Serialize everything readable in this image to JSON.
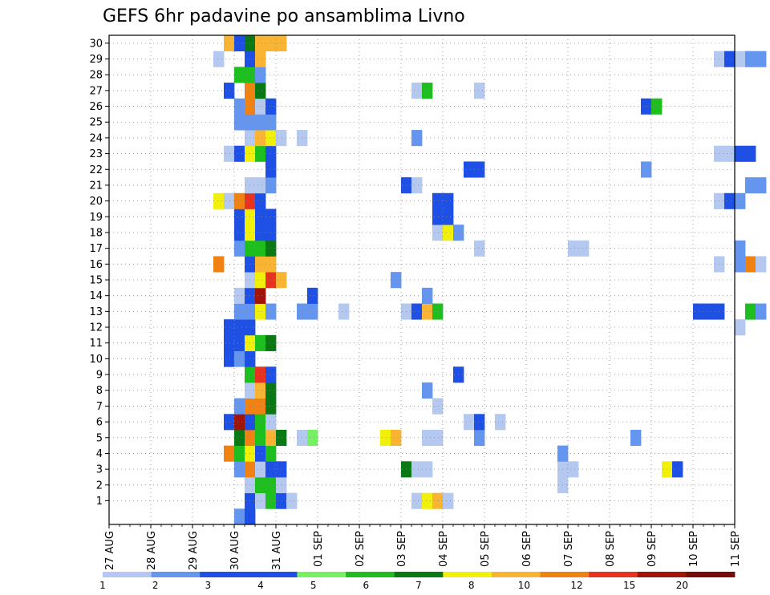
{
  "chart_data": {
    "type": "heatmap",
    "title": "GEFS 6hr padavine po ansamblima Livno",
    "x_start": "27 AUG 00Z",
    "x_step": "6h",
    "x_ticks": [
      "27 AUG",
      "28 AUG",
      "29 AUG",
      "30 AUG",
      "31 AUG",
      "01 SEP",
      "02 SEP",
      "03 SEP",
      "04 SEP",
      "05 SEP",
      "06 SEP",
      "07 SEP",
      "08 SEP",
      "09 SEP",
      "10 SEP",
      "11 SEP"
    ],
    "y_ticks": [
      "1",
      "2",
      "3",
      "4",
      "5",
      "6",
      "7",
      "8",
      "9",
      "10",
      "11",
      "12",
      "13",
      "14",
      "15",
      "16",
      "17",
      "18",
      "19",
      "20",
      "21",
      "22",
      "23",
      "24",
      "25",
      "26",
      "27",
      "28",
      "29",
      "30"
    ],
    "grid": true,
    "colorbar": {
      "labels": [
        "1",
        "2",
        "3",
        "4",
        "5",
        "6",
        "7",
        "8",
        "10",
        "12",
        "15",
        "20"
      ],
      "colors": [
        "#b4c8f0",
        "#6496f0",
        "#1e50e6",
        "#1e50e6",
        "#78f064",
        "#1ebe1e",
        "#0a7814",
        "#f0f00a",
        "#f8b432",
        "#f08214",
        "#e6321e",
        "#a0140a",
        "#780a0a"
      ]
    },
    "members": [
      {
        "member": 0,
        "values": [
          [
            12,
            2
          ],
          [
            13,
            3
          ]
        ]
      },
      {
        "member": 1,
        "values": [
          [
            13,
            3
          ],
          [
            14,
            1
          ],
          [
            15,
            6
          ],
          [
            16,
            4
          ],
          [
            17,
            1
          ],
          [
            29,
            1
          ],
          [
            30,
            8
          ],
          [
            31,
            10
          ],
          [
            32,
            1
          ]
        ]
      },
      {
        "member": 2,
        "values": [
          [
            13,
            1
          ],
          [
            14,
            6
          ],
          [
            15,
            6
          ],
          [
            16,
            1
          ],
          [
            43,
            1
          ]
        ]
      },
      {
        "member": 3,
        "values": [
          [
            12,
            2
          ],
          [
            13,
            13
          ],
          [
            14,
            1
          ],
          [
            15,
            4
          ],
          [
            16,
            3
          ],
          [
            28,
            7
          ],
          [
            29,
            1
          ],
          [
            30,
            1
          ],
          [
            43,
            1
          ],
          [
            44,
            1
          ],
          [
            53,
            8
          ],
          [
            54,
            3
          ]
        ]
      },
      {
        "member": 4,
        "values": [
          [
            11,
            13
          ],
          [
            12,
            6
          ],
          [
            13,
            8
          ],
          [
            14,
            4
          ],
          [
            15,
            6
          ],
          [
            43,
            2
          ]
        ]
      },
      {
        "member": 5,
        "values": [
          [
            12,
            7
          ],
          [
            13,
            13
          ],
          [
            14,
            6
          ],
          [
            15,
            10
          ],
          [
            16,
            7
          ],
          [
            18,
            1
          ],
          [
            19,
            5
          ],
          [
            26,
            8
          ],
          [
            27,
            10
          ],
          [
            30,
            1
          ],
          [
            31,
            1
          ],
          [
            35,
            2
          ],
          [
            50,
            2
          ]
        ]
      },
      {
        "member": 6,
        "values": [
          [
            11,
            4
          ],
          [
            12,
            20
          ],
          [
            13,
            4
          ],
          [
            14,
            6
          ],
          [
            15,
            1
          ],
          [
            34,
            1
          ],
          [
            35,
            3
          ],
          [
            37,
            1
          ]
        ]
      },
      {
        "member": 7,
        "values": [
          [
            12,
            2
          ],
          [
            13,
            13
          ],
          [
            14,
            13
          ],
          [
            15,
            7
          ],
          [
            31,
            1
          ]
        ]
      },
      {
        "member": 8,
        "values": [
          [
            13,
            1
          ],
          [
            14,
            10
          ],
          [
            15,
            7
          ],
          [
            30,
            2
          ]
        ]
      },
      {
        "member": 9,
        "values": [
          [
            13,
            6
          ],
          [
            14,
            15
          ],
          [
            15,
            3
          ],
          [
            33,
            4
          ]
        ]
      },
      {
        "member": 10,
        "values": [
          [
            11,
            4
          ],
          [
            12,
            2
          ],
          [
            13,
            3
          ]
        ]
      },
      {
        "member": 11,
        "values": [
          [
            11,
            3
          ],
          [
            12,
            3
          ],
          [
            13,
            8
          ],
          [
            14,
            6
          ],
          [
            15,
            7
          ]
        ]
      },
      {
        "member": 12,
        "values": [
          [
            11,
            3
          ],
          [
            12,
            3
          ],
          [
            13,
            3
          ],
          [
            60,
            1
          ]
        ]
      },
      {
        "member": 13,
        "values": [
          [
            12,
            2
          ],
          [
            13,
            2
          ],
          [
            14,
            8
          ],
          [
            15,
            2
          ],
          [
            18,
            2
          ],
          [
            19,
            2
          ],
          [
            22,
            1
          ],
          [
            28,
            1
          ],
          [
            29,
            4
          ],
          [
            30,
            10
          ],
          [
            31,
            6
          ],
          [
            56,
            3
          ],
          [
            57,
            4
          ],
          [
            58,
            4
          ],
          [
            61,
            6
          ],
          [
            62,
            2
          ]
        ]
      },
      {
        "member": 14,
        "values": [
          [
            12,
            1
          ],
          [
            13,
            4
          ],
          [
            14,
            20
          ],
          [
            19,
            3
          ],
          [
            30,
            2
          ]
        ]
      },
      {
        "member": 15,
        "values": [
          [
            13,
            1
          ],
          [
            14,
            8
          ],
          [
            15,
            15
          ],
          [
            16,
            10
          ],
          [
            27,
            2
          ]
        ]
      },
      {
        "member": 16,
        "values": [
          [
            10,
            12
          ],
          [
            13,
            4
          ],
          [
            14,
            10
          ],
          [
            15,
            10
          ],
          [
            58,
            1
          ],
          [
            60,
            2
          ],
          [
            61,
            12
          ],
          [
            62,
            1
          ]
        ]
      },
      {
        "member": 17,
        "values": [
          [
            12,
            2
          ],
          [
            13,
            6
          ],
          [
            14,
            6
          ],
          [
            15,
            7
          ],
          [
            35,
            1
          ],
          [
            44,
            1
          ],
          [
            45,
            1
          ],
          [
            60,
            2
          ]
        ]
      },
      {
        "member": 18,
        "values": [
          [
            12,
            3
          ],
          [
            13,
            8
          ],
          [
            14,
            4
          ],
          [
            15,
            3
          ],
          [
            31,
            1
          ],
          [
            32,
            8
          ],
          [
            33,
            2
          ]
        ]
      },
      {
        "member": 19,
        "values": [
          [
            12,
            3
          ],
          [
            13,
            8
          ],
          [
            14,
            4
          ],
          [
            15,
            3
          ],
          [
            31,
            4
          ],
          [
            32,
            3
          ]
        ]
      },
      {
        "member": 20,
        "values": [
          [
            10,
            8
          ],
          [
            11,
            1
          ],
          [
            12,
            12
          ],
          [
            13,
            15
          ],
          [
            14,
            4
          ],
          [
            31,
            4
          ],
          [
            32,
            3
          ],
          [
            58,
            1
          ],
          [
            59,
            3
          ],
          [
            60,
            2
          ]
        ]
      },
      {
        "member": 21,
        "values": [
          [
            13,
            1
          ],
          [
            14,
            1
          ],
          [
            15,
            2
          ],
          [
            28,
            3
          ],
          [
            29,
            1
          ],
          [
            61,
            2
          ],
          [
            62,
            2
          ]
        ]
      },
      {
        "member": 22,
        "values": [
          [
            15,
            4
          ],
          [
            34,
            3
          ],
          [
            35,
            4
          ],
          [
            51,
            2
          ]
        ]
      },
      {
        "member": 23,
        "values": [
          [
            11,
            1
          ],
          [
            12,
            4
          ],
          [
            13,
            8
          ],
          [
            14,
            6
          ],
          [
            15,
            4
          ],
          [
            58,
            1
          ],
          [
            59,
            1
          ],
          [
            60,
            3
          ],
          [
            61,
            4
          ]
        ]
      },
      {
        "member": 24,
        "values": [
          [
            13,
            1
          ],
          [
            14,
            10
          ],
          [
            15,
            8
          ],
          [
            16,
            1
          ],
          [
            18,
            1
          ],
          [
            29,
            2
          ]
        ]
      },
      {
        "member": 25,
        "values": [
          [
            12,
            2
          ],
          [
            13,
            2
          ],
          [
            14,
            2
          ],
          [
            15,
            2
          ]
        ]
      },
      {
        "member": 26,
        "values": [
          [
            12,
            2
          ],
          [
            13,
            12
          ],
          [
            14,
            1
          ],
          [
            15,
            3
          ],
          [
            51,
            3
          ],
          [
            52,
            6
          ]
        ]
      },
      {
        "member": 27,
        "values": [
          [
            11,
            3
          ],
          [
            13,
            12
          ],
          [
            14,
            7
          ],
          [
            29,
            1
          ],
          [
            30,
            6
          ],
          [
            35,
            1
          ]
        ]
      },
      {
        "member": 28,
        "values": [
          [
            12,
            6
          ],
          [
            13,
            6
          ],
          [
            14,
            2
          ]
        ]
      },
      {
        "member": 29,
        "values": [
          [
            10,
            1
          ],
          [
            13,
            4
          ],
          [
            14,
            10
          ],
          [
            58,
            1
          ],
          [
            59,
            3
          ],
          [
            60,
            1
          ],
          [
            61,
            2
          ],
          [
            62,
            2
          ]
        ]
      },
      {
        "member": 30,
        "values": [
          [
            11,
            10
          ],
          [
            12,
            4
          ],
          [
            13,
            7
          ],
          [
            14,
            10
          ],
          [
            15,
            10
          ],
          [
            16,
            10
          ]
        ]
      }
    ]
  }
}
